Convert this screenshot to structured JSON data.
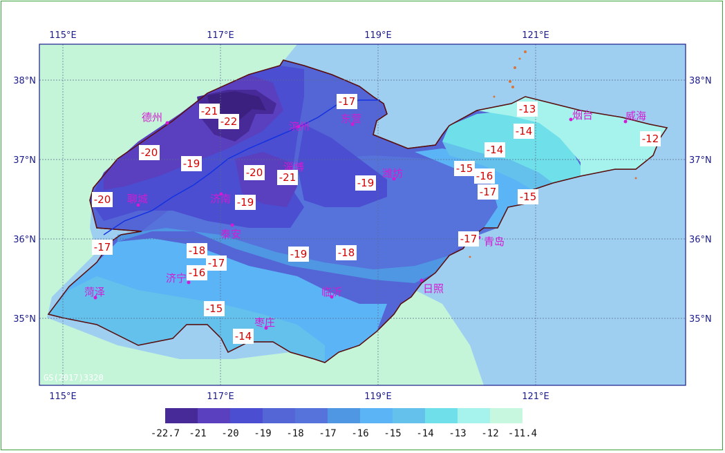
{
  "map": {
    "lon_labels": [
      "115°E",
      "117°E",
      "119°E",
      "121°E"
    ],
    "lat_labels": [
      "38°N",
      "37°N",
      "36°N",
      "35°N"
    ],
    "watermark": "GS(2017)3320",
    "colors": {
      "sea": "#9ecff0",
      "land_outside": "#c4f5d9",
      "border": "#5a1010",
      "river": "#1432e0",
      "graticule": "#5a6b8c"
    }
  },
  "cities": [
    {
      "name": "德州"
    },
    {
      "name": "滨州"
    },
    {
      "name": "东营"
    },
    {
      "name": "烟台"
    },
    {
      "name": "威海"
    },
    {
      "name": "淄博"
    },
    {
      "name": "潍坊"
    },
    {
      "name": "聊城"
    },
    {
      "name": "济南"
    },
    {
      "name": "泰安"
    },
    {
      "name": "青岛"
    },
    {
      "name": "济宁"
    },
    {
      "name": "菏泽"
    },
    {
      "name": "临沂"
    },
    {
      "name": "日照"
    },
    {
      "name": "枣庄"
    }
  ],
  "contour_labels": [
    "-21",
    "-22",
    "-17",
    "-13",
    "-14",
    "-20",
    "-19",
    "-14",
    "-20",
    "-21",
    "-19",
    "-15",
    "-16",
    "-12",
    "-20",
    "-19",
    "-17",
    "-15",
    "-17",
    "-18",
    "-17",
    "-19",
    "-18",
    "-16",
    "-15",
    "-14",
    "-17"
  ],
  "legend": {
    "colors": [
      "#472a97",
      "#5a3fbf",
      "#4b4ed1",
      "#5466d6",
      "#5673db",
      "#4f96e3",
      "#5ab4f6",
      "#63c1ec",
      "#6fe0ea",
      "#a5f3ec",
      "#c7f8df"
    ],
    "labels": [
      "-22.7",
      "-21",
      "-20",
      "-19",
      "-18",
      "-17",
      "-16",
      "-15",
      "-14",
      "-13",
      "-12",
      "-11.4"
    ]
  }
}
